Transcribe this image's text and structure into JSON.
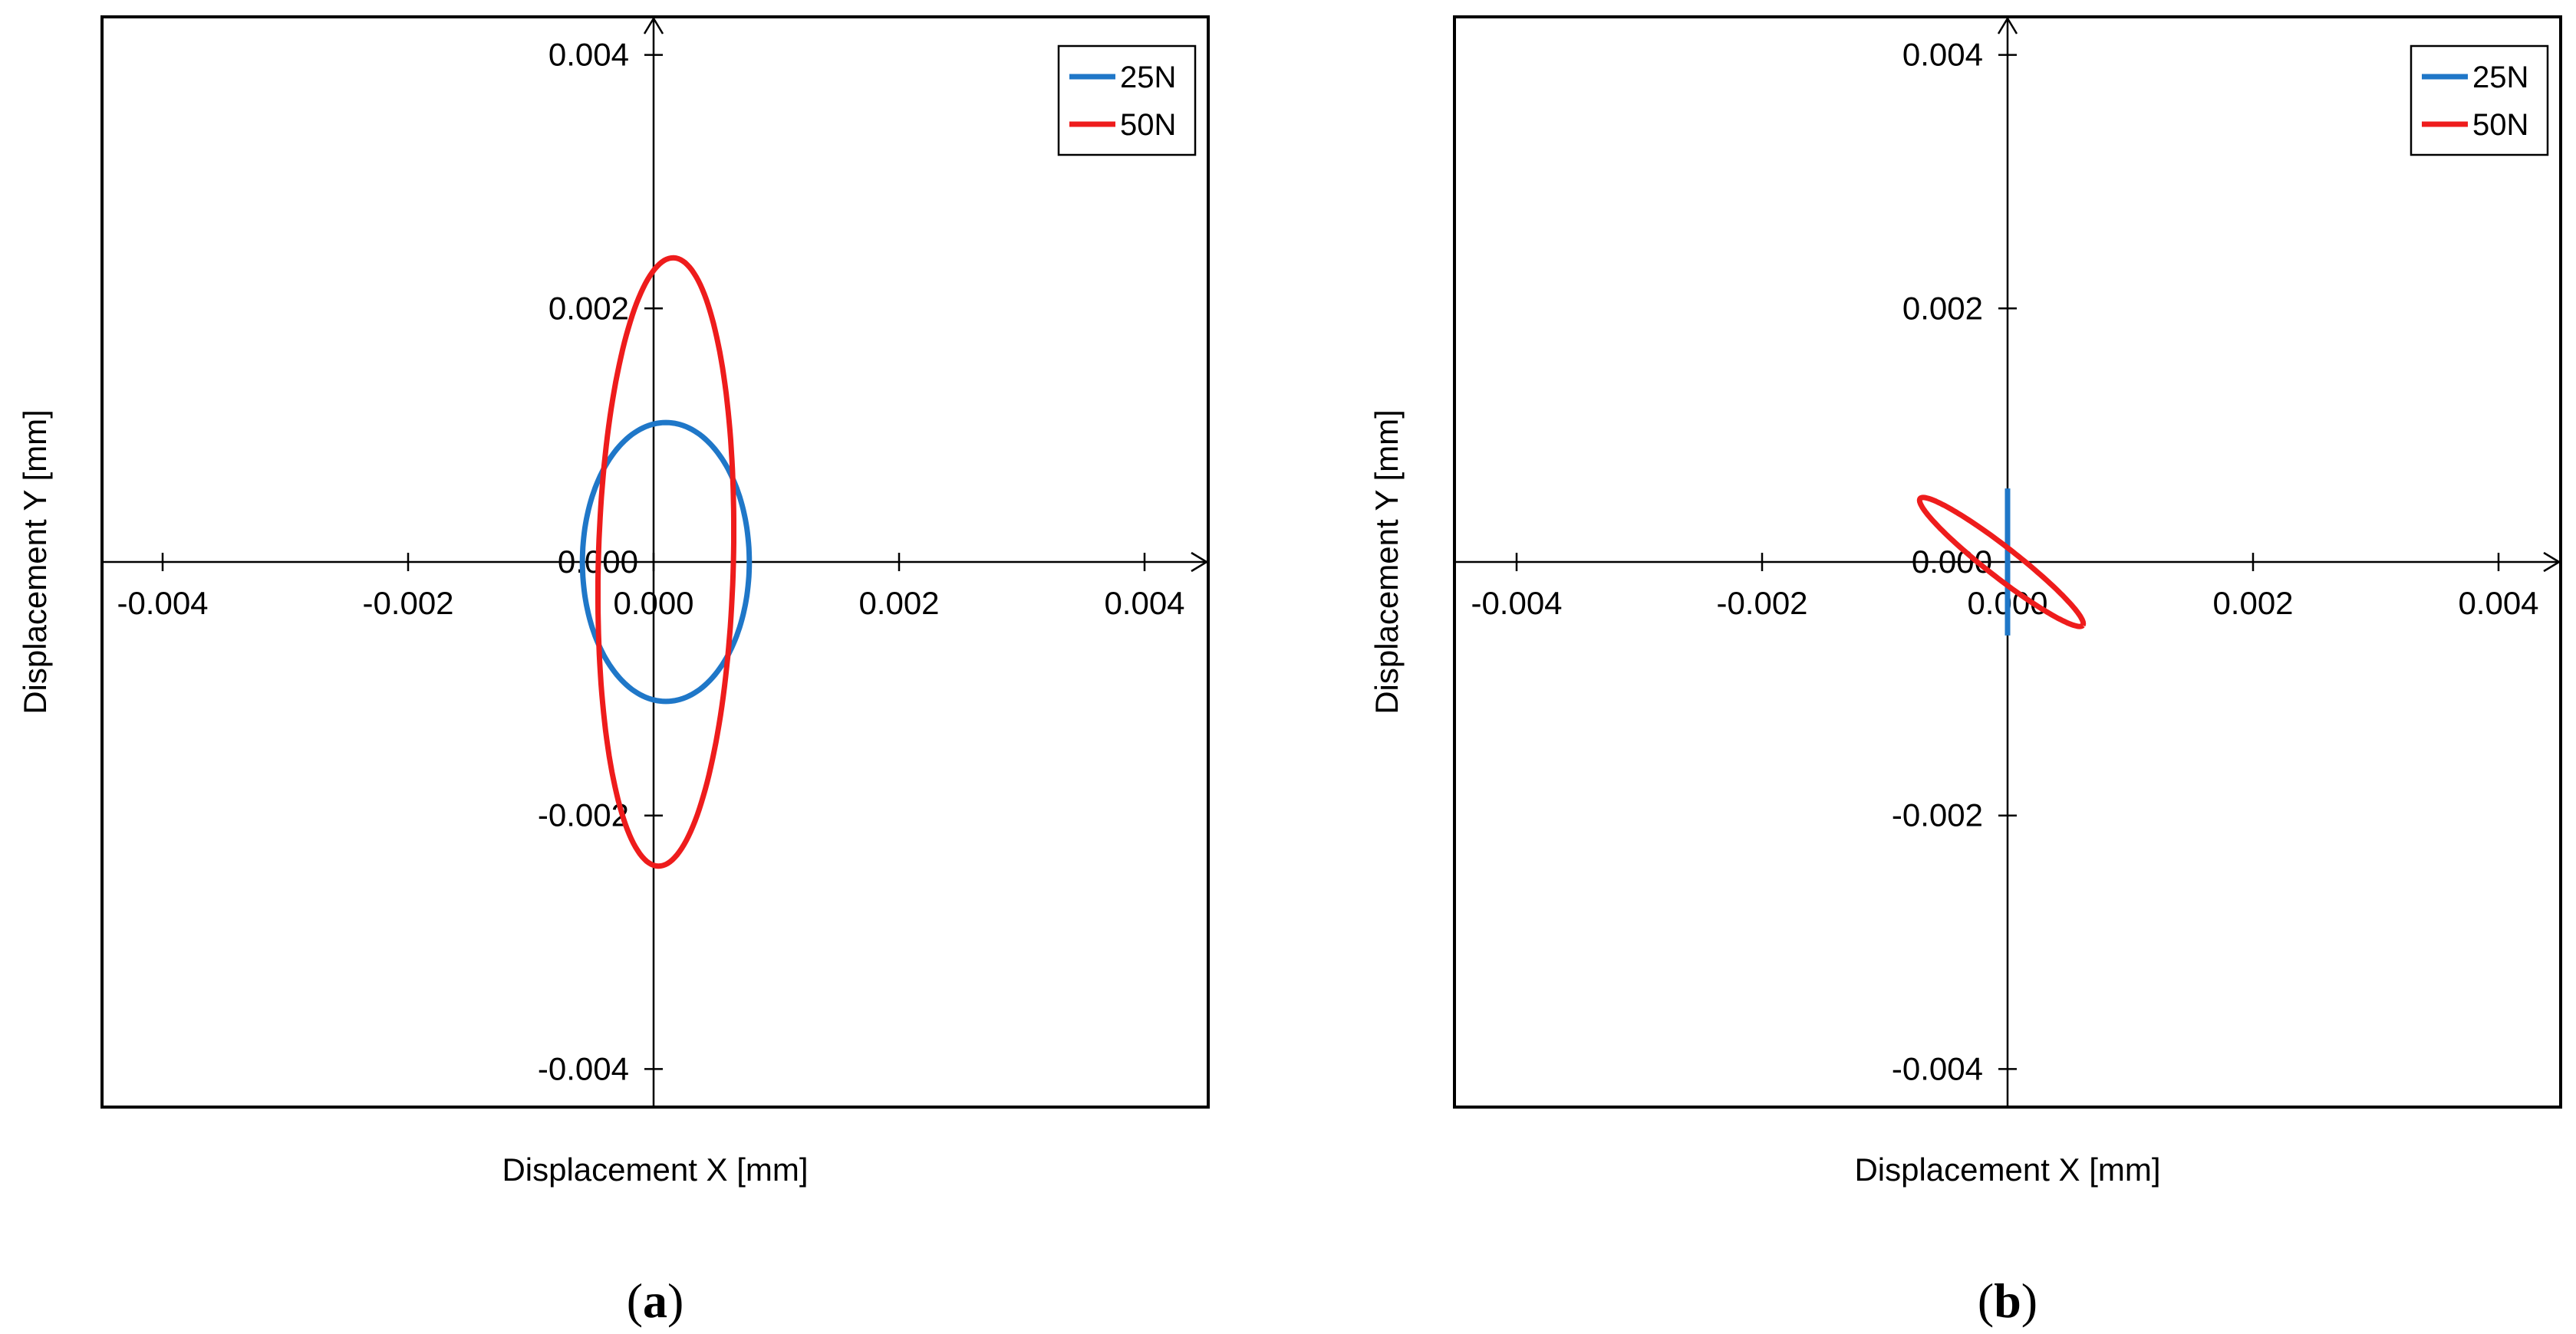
{
  "chart_data": [
    {
      "type": "line",
      "panel_label": "a",
      "xlabel": "Displacement X [mm]",
      "ylabel": "Displacement Y [mm]",
      "xlim": [
        -0.0046,
        0.0046
      ],
      "ylim": [
        -0.004,
        0.004
      ],
      "xticks": [
        -0.004,
        -0.002,
        0.0,
        0.002,
        0.004
      ],
      "yticks": [
        -0.004,
        -0.002,
        0.0,
        0.002,
        0.004
      ],
      "xtick_labels": [
        "-0.004",
        "-0.002",
        "0.000",
        "0.002",
        "0.004"
      ],
      "ytick_labels": [
        "-0.004",
        "-0.002",
        "0.000",
        "0.002",
        "0.004"
      ],
      "legend": {
        "position": "top-right",
        "entries": [
          "25N",
          "50N"
        ]
      },
      "series": [
        {
          "name": "25N",
          "color": "#1f77c8",
          "shape": "ellipse",
          "center": [
            0.0001,
            0.0
          ],
          "rx": 0.00068,
          "ry": 0.0011,
          "rotation_deg": 0
        },
        {
          "name": "50N",
          "color": "#ee1c1c",
          "shape": "ellipse",
          "center": [
            0.0001,
            0.0
          ],
          "rx": 0.00055,
          "ry": 0.0024,
          "rotation_deg": -1.5
        }
      ]
    },
    {
      "type": "line",
      "panel_label": "b",
      "xlabel": "Displacement X [mm]",
      "ylabel": "Displacement Y [mm]",
      "xlim": [
        -0.0046,
        0.0046
      ],
      "ylim": [
        -0.004,
        0.004
      ],
      "xticks": [
        -0.004,
        -0.002,
        0.0,
        0.002,
        0.004
      ],
      "yticks": [
        -0.004,
        -0.002,
        0.0,
        0.002,
        0.004
      ],
      "xtick_labels": [
        "-0.004",
        "-0.002",
        "0.000",
        "0.002",
        "0.004"
      ],
      "ytick_labels": [
        "-0.004",
        "-0.002",
        "0.000",
        "0.002",
        "0.004"
      ],
      "legend": {
        "position": "top-right",
        "entries": [
          "25N",
          "50N"
        ]
      },
      "series": [
        {
          "name": "25N",
          "color": "#1f77c8",
          "shape": "segment",
          "x": [
            0.0,
            0.0
          ],
          "y": [
            -0.00058,
            0.00058
          ]
        },
        {
          "name": "50N",
          "color": "#ee1c1c",
          "shape": "ellipse",
          "center": [
            -5e-05,
            0.0
          ],
          "rx": 0.00083,
          "ry": 0.00012,
          "rotation_deg": -37
        }
      ]
    }
  ]
}
